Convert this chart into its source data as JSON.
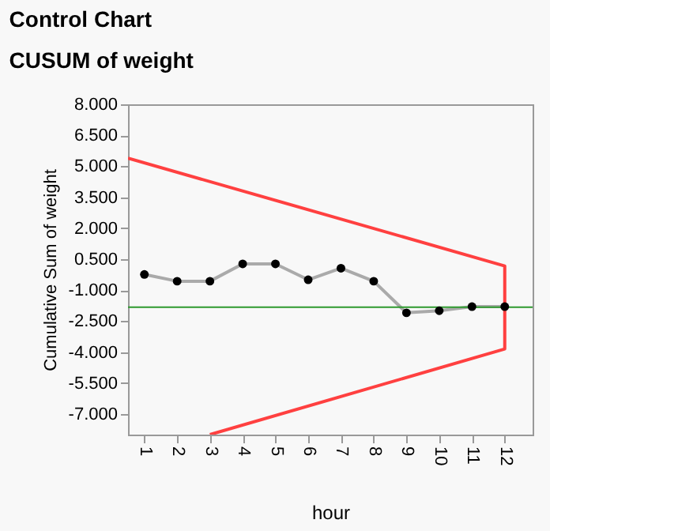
{
  "chart_data": {
    "type": "line",
    "title": "Control Chart",
    "subtitle": "CUSUM of weight",
    "xlabel": "hour",
    "ylabel": "Cumulative Sum of weight",
    "x": [
      1,
      2,
      3,
      4,
      5,
      6,
      7,
      8,
      9,
      10,
      11,
      12
    ],
    "series": [
      {
        "color": "#000000",
        "marker": "circle",
        "values": [
          -0.24,
          -0.57,
          -0.57,
          0.27,
          0.27,
          -0.5,
          0.06,
          -0.57,
          -2.1,
          -2.0,
          -1.8,
          -1.8
        ]
      },
      {
        "color": "#ff4040",
        "marker": "none",
        "x": [
          0.5,
          12,
          12,
          3.0
        ],
        "values": [
          5.39,
          0.17,
          -3.85,
          -8.0
        ]
      }
    ],
    "ref_lines": [
      {
        "axis": "y",
        "value": -1.83,
        "color": "#2e9a2e"
      }
    ],
    "xlim": [
      0.5,
      12.85
    ],
    "xticks": [
      1,
      2,
      3,
      4,
      5,
      6,
      7,
      8,
      9,
      10,
      11,
      12
    ],
    "ylim": [
      -8.0,
      8.0
    ],
    "yticks": [
      {
        "value": 8,
        "label": "8.000"
      },
      {
        "value": 6.5,
        "label": "6.500"
      },
      {
        "value": 5,
        "label": "5.000"
      },
      {
        "value": 3.5,
        "label": "3.500"
      },
      {
        "value": 2,
        "label": "2.000"
      },
      {
        "value": 0.5,
        "label": "0.500"
      },
      {
        "value": -1,
        "label": "-1.000"
      },
      {
        "value": -2.5,
        "label": "-2.500"
      },
      {
        "value": -4,
        "label": "-4.000"
      },
      {
        "value": -5.5,
        "label": "-5.500"
      },
      {
        "value": -7,
        "label": "-7.000"
      }
    ],
    "grid": false
  }
}
